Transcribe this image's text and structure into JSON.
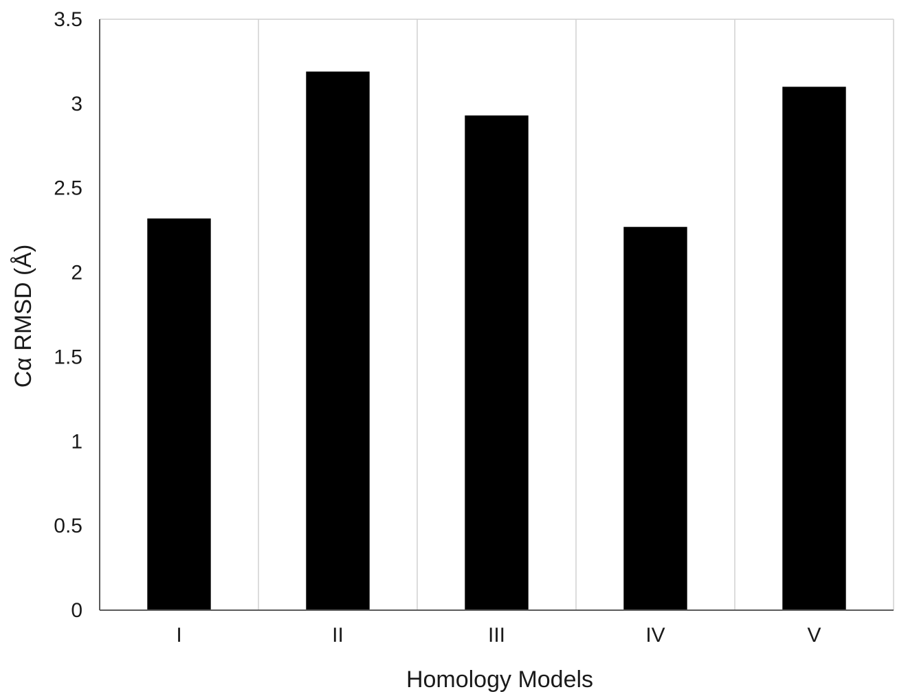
{
  "chart_data": {
    "type": "bar",
    "title": "",
    "xlabel": "Homology Models",
    "ylabel": "Cα RMSD (Å)",
    "categories": [
      "I",
      "II",
      "III",
      "IV",
      "V"
    ],
    "values": [
      2.32,
      3.19,
      2.93,
      2.27,
      3.1
    ],
    "ylim": [
      0,
      3.5
    ],
    "yticks": [
      "0",
      "0.5",
      "1",
      "1.5",
      "2",
      "2.5",
      "3",
      "3.5"
    ],
    "grid": "vertical separators between categories",
    "legend": "none",
    "bar_color": "#000000",
    "grid_color": "#d0d0d0",
    "axis_color": "#5a5a5a"
  }
}
